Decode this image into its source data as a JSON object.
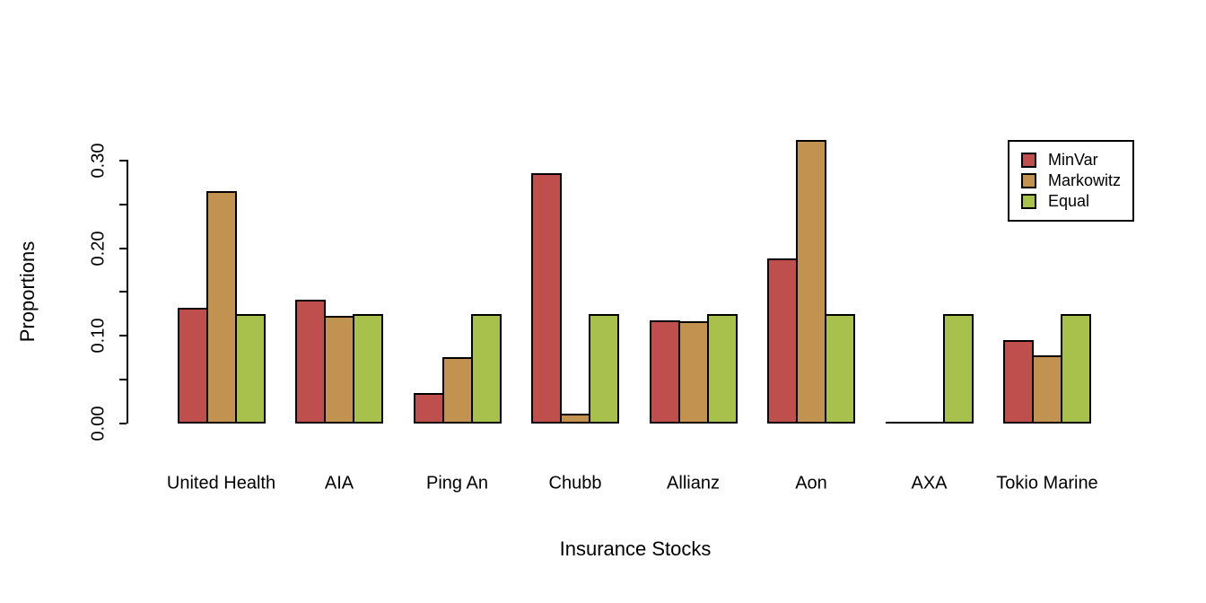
{
  "chart_data": {
    "type": "bar",
    "title": "",
    "xlabel": "Insurance Stocks",
    "ylabel": "Proportions",
    "categories": [
      "United Health",
      "AIA",
      "Ping An",
      "Chubb",
      "Allianz",
      "Aon",
      "AXA",
      "Tokio Marine"
    ],
    "series": [
      {
        "name": "MinVar",
        "color": "#BE4F4C",
        "values": [
          0.132,
          0.142,
          0.035,
          0.286,
          0.118,
          0.189,
          0.0,
          0.095
        ]
      },
      {
        "name": "Markowitz",
        "color": "#C29250",
        "values": [
          0.266,
          0.123,
          0.076,
          0.011,
          0.117,
          0.324,
          0.0,
          0.078
        ]
      },
      {
        "name": "Equal",
        "color": "#A8C14D",
        "values": [
          0.125,
          0.125,
          0.125,
          0.125,
          0.125,
          0.125,
          0.125,
          0.125
        ]
      }
    ],
    "ylim": [
      0,
      0.35
    ],
    "yticks": [
      {
        "v": 0.0,
        "label": "0.00"
      },
      {
        "v": 0.05,
        "label": ""
      },
      {
        "v": 0.1,
        "label": "0.10"
      },
      {
        "v": 0.15,
        "label": ""
      },
      {
        "v": 0.2,
        "label": "0.20"
      },
      {
        "v": 0.25,
        "label": ""
      },
      {
        "v": 0.3,
        "label": "0.30"
      }
    ],
    "grid": false,
    "legend": {
      "position": "top-right",
      "entries": [
        "MinVar",
        "Markowitz",
        "Equal"
      ]
    },
    "bar_border_color": "#000000",
    "background_color": "#FFFFFF",
    "text_color": "#000000"
  }
}
